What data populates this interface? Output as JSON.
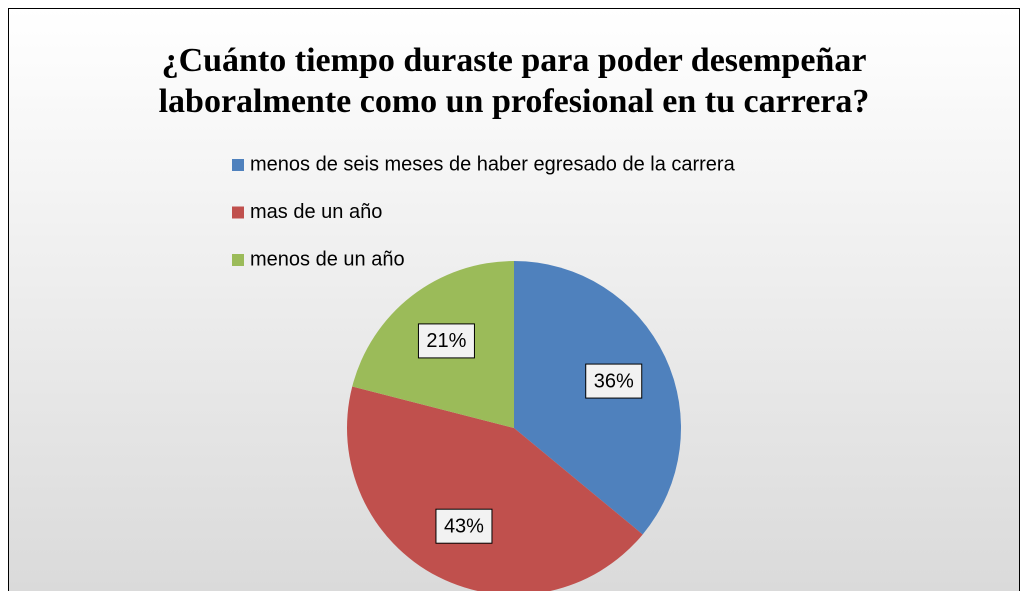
{
  "chart_data": {
    "type": "pie",
    "title": "¿Cuánto tiempo duraste para poder desempeñar laboralmente como un profesional en tu carrera?",
    "categories": [
      "menos de seis meses de haber egresado de la carrera",
      "mas de un año",
      "menos de un año"
    ],
    "values": [
      36,
      43,
      21
    ],
    "value_labels": [
      "36%",
      "43%",
      "21%"
    ],
    "colors": [
      "#4f81bd",
      "#c0504d",
      "#9bbb59"
    ],
    "legend": "top"
  }
}
